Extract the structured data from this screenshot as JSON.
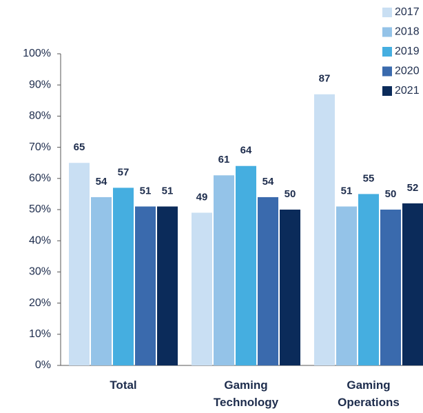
{
  "chart_data": {
    "type": "bar",
    "categories": [
      "Total",
      "Gaming Technology",
      "Gaming Operations"
    ],
    "series": [
      {
        "name": "2017",
        "color": "#c9dff3",
        "values": [
          65,
          49,
          87
        ]
      },
      {
        "name": "2018",
        "color": "#94c3e8",
        "values": [
          54,
          61,
          51
        ]
      },
      {
        "name": "2019",
        "color": "#45aee0",
        "values": [
          57,
          64,
          55
        ]
      },
      {
        "name": "2020",
        "color": "#3a6aad",
        "values": [
          51,
          54,
          50
        ]
      },
      {
        "name": "2021",
        "color": "#0b2b5a",
        "values": [
          51,
          50,
          52
        ]
      }
    ],
    "ylim": [
      0,
      100
    ],
    "yticks": [
      {
        "value": 0,
        "label": "0%"
      },
      {
        "value": 10,
        "label": "10%"
      },
      {
        "value": 20,
        "label": "20%"
      },
      {
        "value": 30,
        "label": "30%"
      },
      {
        "value": 40,
        "label": "40%"
      },
      {
        "value": 50,
        "label": "50%"
      },
      {
        "value": 60,
        "label": "60%"
      },
      {
        "value": 70,
        "label": "70%"
      },
      {
        "value": 80,
        "label": "80%"
      },
      {
        "value": 90,
        "label": "90%"
      },
      {
        "value": 100,
        "label": "100%"
      }
    ],
    "legend": "top-right"
  }
}
